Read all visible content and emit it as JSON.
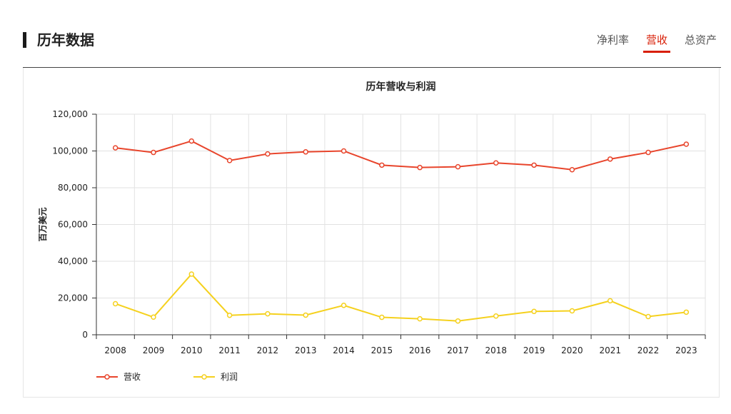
{
  "section": {
    "title": "历年数据",
    "tabs": [
      {
        "label": "净利率",
        "active": false
      },
      {
        "label": "营收",
        "active": true
      },
      {
        "label": "总资产",
        "active": false
      }
    ],
    "accent_color": "#d81e06"
  },
  "chart_data": {
    "type": "line",
    "title": "历年营收与利润",
    "ylabel": "百万美元",
    "xlabel": "",
    "x": [
      "2008",
      "2009",
      "2010",
      "2011",
      "2012",
      "2013",
      "2014",
      "2015",
      "2016",
      "2017",
      "2018",
      "2019",
      "2020",
      "2021",
      "2022",
      "2023"
    ],
    "ylim": [
      0,
      120000
    ],
    "yticks": [
      0,
      20000,
      40000,
      60000,
      80000,
      100000,
      120000
    ],
    "ytick_labels": [
      "0",
      "20,000",
      "40,000",
      "60,000",
      "80,000",
      "100,000",
      "120,000"
    ],
    "grid": true,
    "legend_position": "bottom-left",
    "series": [
      {
        "name": "营收",
        "color": "#e8452c",
        "values": [
          101700,
          99200,
          105400,
          94800,
          98400,
          99500,
          100000,
          92300,
          91000,
          91400,
          93500,
          92300,
          89800,
          95600,
          99200,
          103700
        ]
      },
      {
        "name": "利润",
        "color": "#f5d11e",
        "values": [
          16900,
          9600,
          33000,
          10600,
          11400,
          10700,
          16000,
          9500,
          8700,
          7500,
          10200,
          12700,
          13000,
          18500,
          9900,
          12300
        ]
      }
    ]
  }
}
